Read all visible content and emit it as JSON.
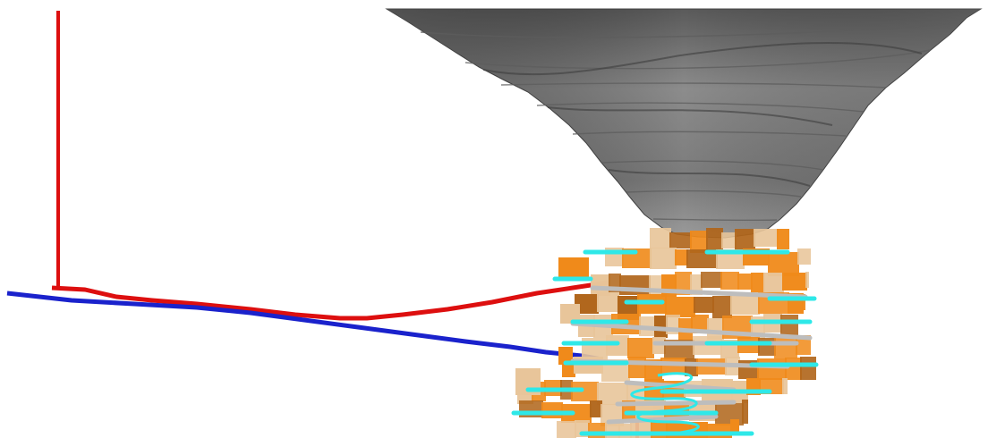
{
  "scene": {
    "background": "#ffffff",
    "colors": {
      "pit_shell_light": "#9a9a9a",
      "pit_shell_mid": "#767676",
      "pit_shell_dark": "#4f4f4f",
      "drillhole_red": "#dd0f0f",
      "drillhole_blue": "#1a22cc",
      "orebody_orange": "#f08a1a",
      "orebody_tan": "#e8c59a",
      "orebody_brown": "#b0651a",
      "level_cyan": "#2ee8e8",
      "ramp_grey": "#c9c9c9"
    }
  }
}
